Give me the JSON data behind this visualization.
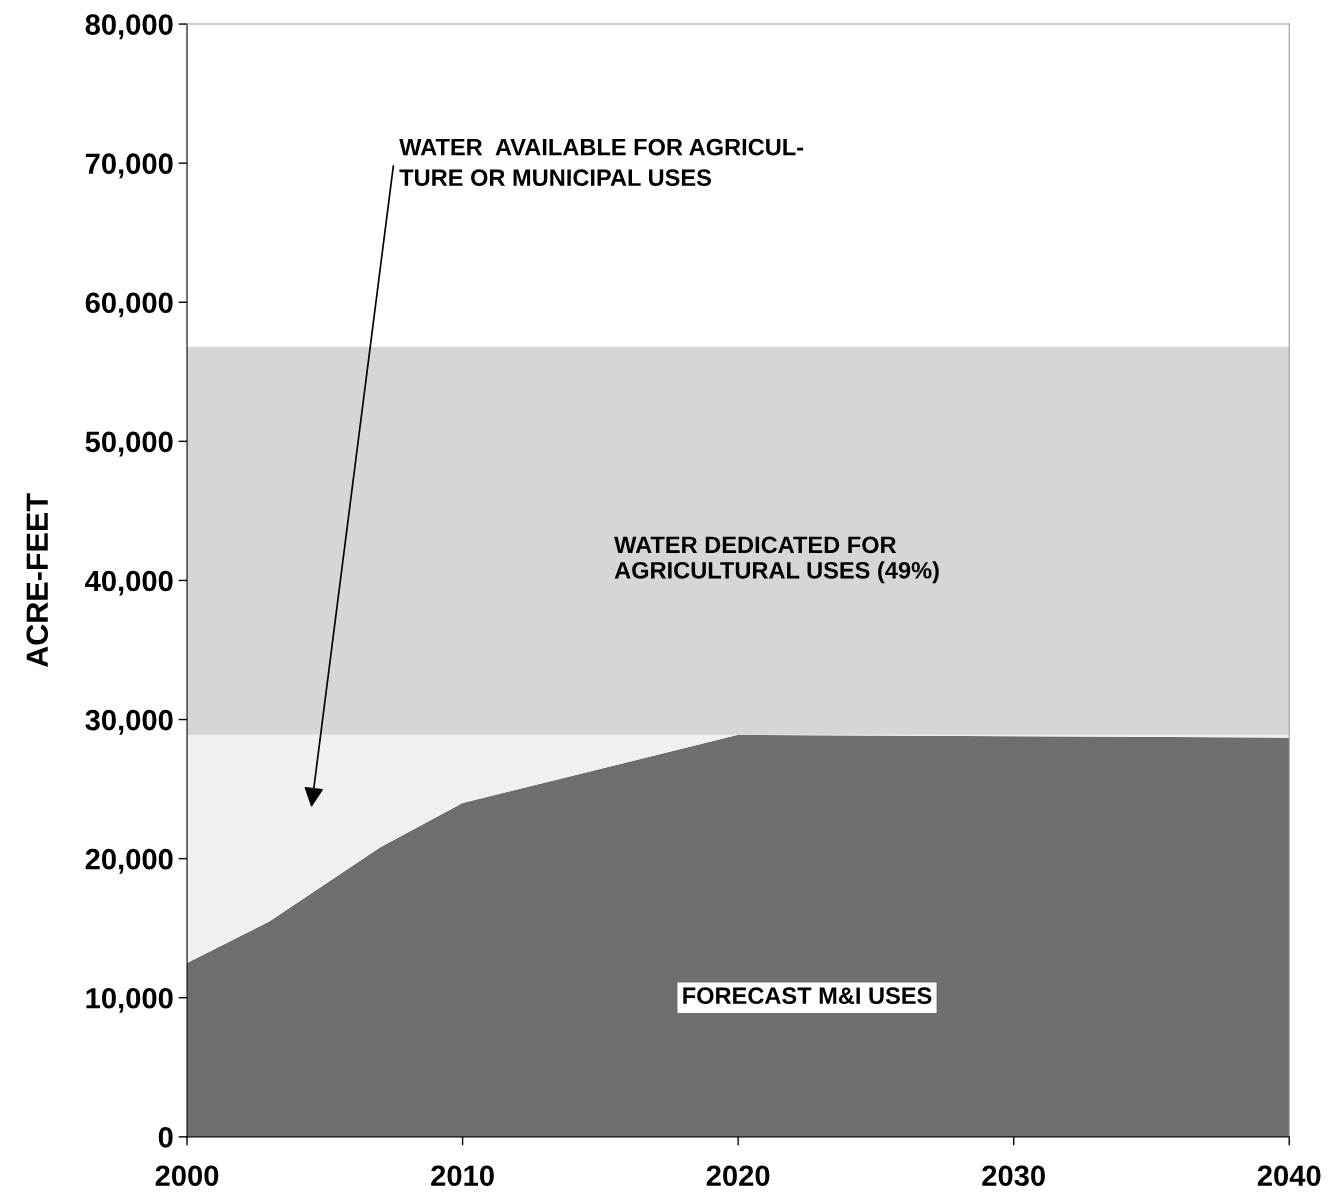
{
  "chart_data": {
    "type": "area",
    "stacked": true,
    "ylabel": "ACRE-FEET",
    "x": [
      2000,
      2003,
      2007,
      2010,
      2020,
      2030,
      2040
    ],
    "series": [
      {
        "name": "FORECAST M&I USES",
        "color": "#6e6e6e",
        "values": [
          12500,
          15500,
          20800,
          24000,
          28900,
          28800,
          28700
        ]
      },
      {
        "color": "#f0f0f0",
        "values": [
          16400,
          13400,
          8100,
          4900,
          0,
          100,
          200
        ]
      },
      {
        "name": "WATER DEDICATED FOR AGRICULTURAL USES (49%)",
        "color": "#d6d6d6",
        "values": [
          27900,
          27900,
          27900,
          27900,
          27900,
          27900,
          27900
        ]
      }
    ],
    "annotations": [
      "WATER  AVAILABLE FOR AGRICUL-\nTURE OR MUNICIPAL USES"
    ],
    "xlim": [
      2000,
      2040
    ],
    "xticks": [
      2000,
      2010,
      2020,
      2030,
      2040
    ],
    "ylim": [
      0,
      80000
    ],
    "yticks": [
      {
        "value": 0,
        "label": "0"
      },
      {
        "value": 10000,
        "label": "10,000"
      },
      {
        "value": 20000,
        "label": "20,000"
      },
      {
        "value": 30000,
        "label": "30,000"
      },
      {
        "value": 40000,
        "label": "40,000"
      },
      {
        "value": 50000,
        "label": "50,000"
      },
      {
        "value": 60000,
        "label": "60,000"
      },
      {
        "value": 70000,
        "label": "70,000"
      },
      {
        "value": 80000,
        "label": "80,000"
      }
    ],
    "grid": false
  }
}
